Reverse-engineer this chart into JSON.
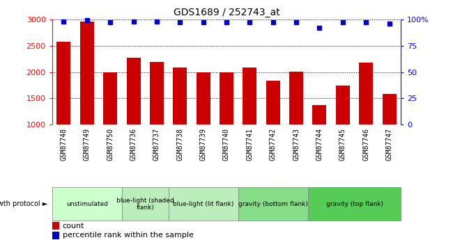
{
  "title": "GDS1689 / 252743_at",
  "samples": [
    "GSM87748",
    "GSM87749",
    "GSM87750",
    "GSM87736",
    "GSM87737",
    "GSM87738",
    "GSM87739",
    "GSM87740",
    "GSM87741",
    "GSM87742",
    "GSM87743",
    "GSM87744",
    "GSM87745",
    "GSM87746",
    "GSM87747"
  ],
  "counts": [
    2575,
    2960,
    2000,
    2270,
    2190,
    2090,
    2000,
    1990,
    2080,
    1840,
    2010,
    1380,
    1740,
    2180,
    1590
  ],
  "percentiles": [
    98,
    99,
    97,
    98,
    98,
    97,
    97,
    97,
    97,
    97,
    97,
    92,
    97,
    97,
    96
  ],
  "ylim_left": [
    1000,
    3000
  ],
  "yticks_left": [
    1000,
    1500,
    2000,
    2500,
    3000
  ],
  "yticks_right": [
    0,
    25,
    50,
    75,
    100
  ],
  "bar_color": "#cc0000",
  "dot_color": "#0000cc",
  "groups": [
    {
      "label": "unstimulated",
      "start": 0,
      "end": 3,
      "color": "#ccffcc"
    },
    {
      "label": "blue-light (shaded\nflank)",
      "start": 3,
      "end": 5,
      "color": "#bbeebb"
    },
    {
      "label": "blue-light (lit flank)",
      "start": 5,
      "end": 8,
      "color": "#bbeebb"
    },
    {
      "label": "gravity (bottom flank)",
      "start": 8,
      "end": 11,
      "color": "#88dd88"
    },
    {
      "label": "gravity (top flank)",
      "start": 11,
      "end": 15,
      "color": "#55cc55"
    }
  ],
  "group_label": "growth protocol",
  "legend_count_label": "count",
  "legend_pct_label": "percentile rank within the sample",
  "sample_area_color": "#cccccc",
  "white": "#ffffff"
}
